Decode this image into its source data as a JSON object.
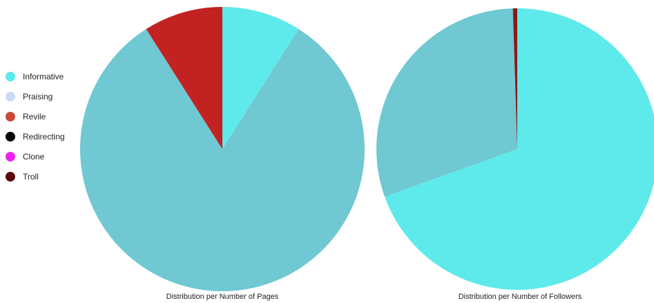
{
  "legend": [
    {
      "label": "Informative",
      "color": "#5eeaea"
    },
    {
      "label": "Praising",
      "color": "#c9daf4"
    },
    {
      "label": "Revile",
      "color": "#c94a3c"
    },
    {
      "label": "Redirecting",
      "color": "#050505"
    },
    {
      "label": "Clone",
      "color": "#ee22ee"
    },
    {
      "label": "Troll",
      "color": "#5a0a0a"
    }
  ],
  "chart_data": [
    {
      "type": "pie",
      "title": "Distribution per Number of Pages",
      "slices": [
        {
          "label": "Informative",
          "value": 9,
          "color": "#5eeaea"
        },
        {
          "label": "",
          "value": 82,
          "color": "#6fc8d2"
        },
        {
          "label": "Revile",
          "value": 9,
          "color": "#c22222"
        }
      ]
    },
    {
      "type": "pie",
      "title": "Distribution per Number of Followers",
      "slices": [
        {
          "label": "Informative",
          "value": 69.5,
          "color": "#5eeaea"
        },
        {
          "label": "",
          "value": 30,
          "color": "#6fc8d2"
        },
        {
          "label": "Troll",
          "value": 0.5,
          "color": "#8a1a1a"
        }
      ]
    }
  ]
}
